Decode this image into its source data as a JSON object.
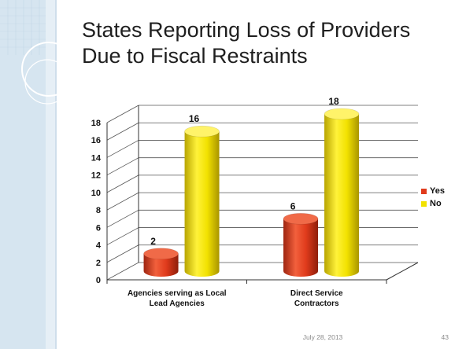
{
  "slide": {
    "title": "States Reporting Loss of Providers Due to Fiscal Restraints",
    "footer_date": "July 28, 2013",
    "page_number": "43"
  },
  "colors": {
    "yes": "#e03b1c",
    "no": "#f2e200",
    "sidebar": "#dbe8f2"
  },
  "chart_data": {
    "type": "bar",
    "categories": [
      "Agencies serving as Local Lead Agencies",
      "Direct Service Contractors"
    ],
    "category_lines": [
      [
        "Agencies serving as Local",
        "Lead Agencies"
      ],
      [
        "Direct Service",
        "Contractors"
      ]
    ],
    "series": [
      {
        "name": "Yes",
        "values": [
          2,
          6
        ]
      },
      {
        "name": "No",
        "values": [
          16,
          18
        ]
      }
    ],
    "y_ticks": [
      0,
      2,
      4,
      6,
      8,
      10,
      12,
      14,
      16,
      18
    ],
    "ylim": [
      0,
      18
    ],
    "grid": true,
    "legend": "right",
    "three_d": true,
    "shape": "cylinder",
    "title": "",
    "xlabel": "",
    "ylabel": ""
  }
}
